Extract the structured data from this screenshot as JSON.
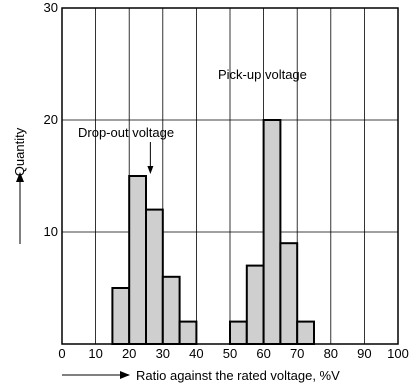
{
  "chart_data": {
    "type": "bar",
    "xlabel": "Ratio against the rated voltage, %V",
    "ylabel": "Quantity",
    "xlim": [
      0,
      100
    ],
    "ylim": [
      0,
      30
    ],
    "x_ticks": [
      0,
      10,
      20,
      30,
      40,
      50,
      60,
      70,
      80,
      90,
      100
    ],
    "y_ticks": [
      10,
      20,
      30
    ],
    "grid": true,
    "bin_width": 5,
    "series": [
      {
        "name": "Drop-out voltage",
        "bin_starts": [
          15,
          20,
          25,
          30,
          35
        ],
        "values": [
          5,
          15,
          12,
          6,
          2
        ]
      },
      {
        "name": "Pick-up voltage",
        "bin_starts": [
          50,
          55,
          60,
          65,
          70
        ],
        "values": [
          2,
          7,
          20,
          9,
          2
        ]
      }
    ],
    "annotations": [
      {
        "text": "Drop-out voltage",
        "points_to_x": 26.3,
        "points_to_y": 15
      },
      {
        "text": "Pick-up voltage",
        "points_to_x": null,
        "points_to_y": null
      }
    ],
    "colors": {
      "fill": "#cfcfcf",
      "stroke": "#000000",
      "grid": "#000000"
    }
  }
}
